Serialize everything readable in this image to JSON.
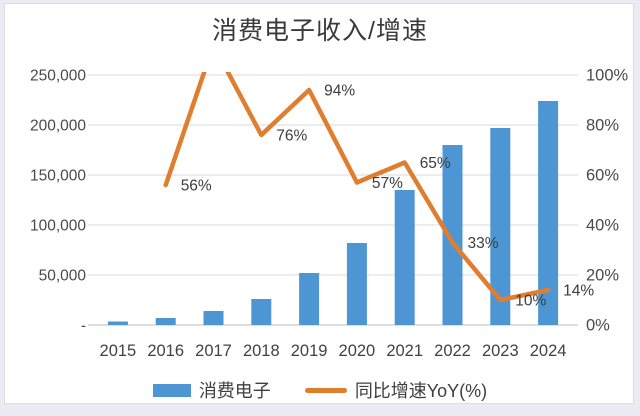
{
  "page": {
    "background": "#ebebf1",
    "card_background": "#ffffff"
  },
  "title": "消费电子收入/增速",
  "chart_data": {
    "type": "bar+line combo",
    "title": "消费电子收入/增速",
    "categories": [
      "2015",
      "2016",
      "2017",
      "2018",
      "2019",
      "2020",
      "2021",
      "2022",
      "2023",
      "2024"
    ],
    "series": [
      {
        "name": "消费电子",
        "type": "bar",
        "axis": "left",
        "color": "#4E96D3",
        "values": [
          3500,
          7000,
          14000,
          26000,
          52000,
          82000,
          135000,
          180000,
          197000,
          224000
        ]
      },
      {
        "name": "同比增速YoY(%)",
        "type": "line",
        "axis": "right",
        "color": "#E07E30",
        "values": [
          null,
          56,
          112,
          76,
          94,
          57,
          65,
          33,
          10,
          14
        ],
        "point_labels": [
          "",
          "56%",
          "",
          "76%",
          "94%",
          "57%",
          "65%",
          "33%",
          "10%",
          "14%"
        ],
        "note": "2017 point rises above the 100% plot top and is clipped; it has no visible label"
      }
    ],
    "left_axis": {
      "min": 0,
      "max": 250000,
      "ticks": [
        "250,000",
        "200,000",
        "150,000",
        "100,000",
        "50,000",
        "-"
      ]
    },
    "right_axis": {
      "min": 0,
      "max": 100,
      "ticks": [
        "100%",
        "80%",
        "60%",
        "40%",
        "20%",
        "0%"
      ]
    },
    "grid": true,
    "gridline_color": "#d9d9d9",
    "axisline_color": "#bfbfbf",
    "legend_position": "bottom"
  }
}
